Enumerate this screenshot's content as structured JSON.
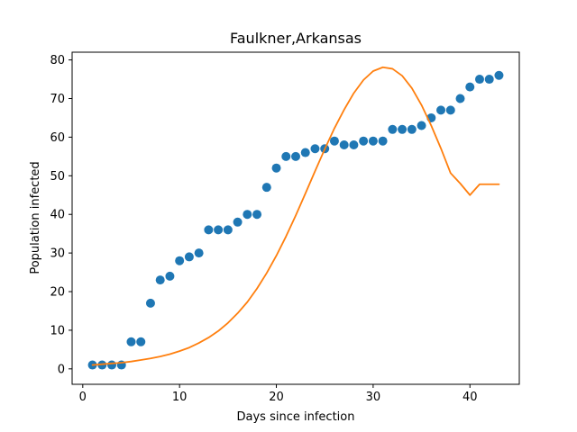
{
  "chart_data": {
    "type": "scatter",
    "title": "Faulkner,Arkansas",
    "xlabel": "Days since infection",
    "ylabel": "Population infected",
    "xlim": [
      -1.1,
      45.1
    ],
    "ylim": [
      -4.0,
      82.0
    ],
    "xticks": [
      0,
      10,
      20,
      30,
      40
    ],
    "yticks": [
      0,
      10,
      20,
      30,
      40,
      50,
      60,
      70,
      80
    ],
    "grid": false,
    "series": [
      {
        "kind": "scatter",
        "color": "#1f77b4",
        "x": [
          1,
          2,
          3,
          4,
          5,
          6,
          7,
          8,
          9,
          10,
          11,
          12,
          13,
          14,
          15,
          16,
          17,
          18,
          19,
          20,
          21,
          22,
          23,
          24,
          25,
          26,
          27,
          28,
          29,
          30,
          31,
          32,
          33,
          34,
          35,
          36,
          37,
          38,
          39,
          40,
          41,
          42,
          43
        ],
        "y": [
          1,
          1,
          1,
          1,
          7,
          7,
          17,
          23,
          24,
          28,
          29,
          30,
          36,
          36,
          36,
          38,
          40,
          40,
          47,
          52,
          55,
          55,
          56,
          57,
          57,
          59,
          58,
          58,
          59,
          59,
          59,
          62,
          62,
          62,
          63,
          65,
          67,
          67,
          70,
          73,
          75,
          75,
          76
        ]
      },
      {
        "kind": "line",
        "color": "#ff7f0e",
        "x": [
          1,
          2,
          3,
          4,
          5,
          6,
          7,
          8,
          9,
          10,
          11,
          12,
          13,
          14,
          15,
          16,
          17,
          18,
          19,
          20,
          21,
          22,
          23,
          24,
          25,
          26,
          27,
          28,
          29,
          30,
          31,
          32,
          33,
          34,
          35,
          36,
          37,
          38,
          39,
          40,
          41,
          42,
          43
        ],
        "y": [
          1.0,
          1.2,
          1.4,
          1.6,
          1.9,
          2.3,
          2.7,
          3.2,
          3.8,
          4.6,
          5.5,
          6.7,
          8.1,
          9.8,
          11.9,
          14.4,
          17.3,
          20.8,
          24.8,
          29.3,
          34.3,
          39.7,
          45.4,
          51.2,
          56.9,
          62.3,
          67.1,
          71.4,
          74.8,
          77.1,
          78.1,
          77.7,
          75.9,
          72.7,
          68.3,
          63.0,
          57.1,
          50.7,
          48.0,
          45.0,
          47.8,
          47.8,
          47.8
        ]
      }
    ]
  }
}
